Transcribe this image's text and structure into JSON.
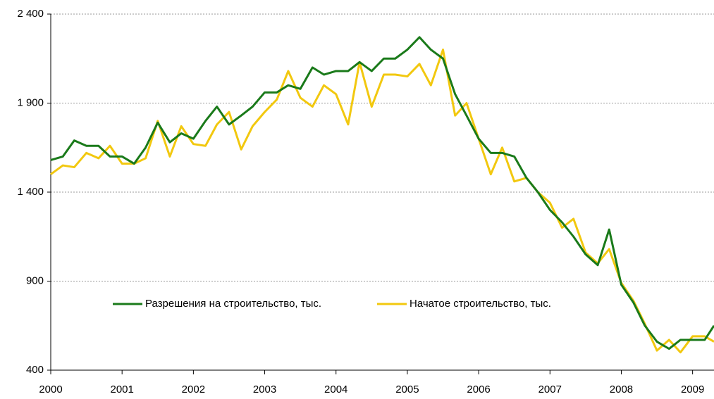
{
  "chart_data": {
    "type": "line",
    "x": [
      2000.0,
      2000.17,
      2000.33,
      2000.5,
      2000.67,
      2000.83,
      2001.0,
      2001.17,
      2001.33,
      2001.5,
      2001.67,
      2001.83,
      2002.0,
      2002.17,
      2002.33,
      2002.5,
      2002.67,
      2002.83,
      2003.0,
      2003.17,
      2003.33,
      2003.5,
      2003.67,
      2003.83,
      2004.0,
      2004.17,
      2004.33,
      2004.5,
      2004.67,
      2004.83,
      2005.0,
      2005.17,
      2005.33,
      2005.5,
      2005.67,
      2005.83,
      2006.0,
      2006.17,
      2006.33,
      2006.5,
      2006.67,
      2006.83,
      2007.0,
      2007.17,
      2007.33,
      2007.5,
      2007.67,
      2007.83,
      2008.0,
      2008.17,
      2008.33,
      2008.5,
      2008.67,
      2008.83,
      2009.0,
      2009.17,
      2009.3
    ],
    "series": [
      {
        "name": "Разрешения на строительство, тыс.",
        "color": "#1a7a1a",
        "values": [
          1580,
          1600,
          1690,
          1660,
          1660,
          1600,
          1600,
          1560,
          1650,
          1790,
          1680,
          1730,
          1700,
          1800,
          1880,
          1780,
          1830,
          1880,
          1960,
          1960,
          2000,
          1980,
          2100,
          2060,
          2080,
          2080,
          2130,
          2080,
          2150,
          2150,
          2200,
          2270,
          2200,
          2150,
          1950,
          1830,
          1700,
          1620,
          1620,
          1600,
          1480,
          1400,
          1300,
          1230,
          1150,
          1050,
          990,
          1190,
          880,
          780,
          650,
          560,
          520,
          570,
          570,
          570,
          650
        ]
      },
      {
        "name": "Начатое строительство, тыс.",
        "color": "#f2c80f",
        "values": [
          1500,
          1550,
          1540,
          1620,
          1590,
          1660,
          1560,
          1560,
          1590,
          1800,
          1600,
          1770,
          1670,
          1660,
          1780,
          1850,
          1640,
          1770,
          1850,
          1920,
          2080,
          1930,
          1880,
          2000,
          1950,
          1780,
          2130,
          1880,
          2060,
          2060,
          2050,
          2120,
          2000,
          2200,
          1830,
          1900,
          1700,
          1500,
          1650,
          1460,
          1480,
          1400,
          1340,
          1200,
          1250,
          1060,
          1000,
          1080,
          890,
          790,
          660,
          510,
          570,
          500,
          590,
          590,
          560
        ]
      }
    ],
    "xlim": [
      2000,
      2009.3
    ],
    "xticks": [
      2000,
      2001,
      2002,
      2003,
      2004,
      2005,
      2006,
      2007,
      2008,
      2009
    ],
    "ylim": [
      400,
      2400
    ],
    "yticks": [
      400,
      900,
      {
        "value": 1400,
        "label": "1 400"
      },
      {
        "value": 1900,
        "label": "1 900"
      },
      {
        "value": 2400,
        "label": "2 400"
      }
    ],
    "grid": true
  }
}
